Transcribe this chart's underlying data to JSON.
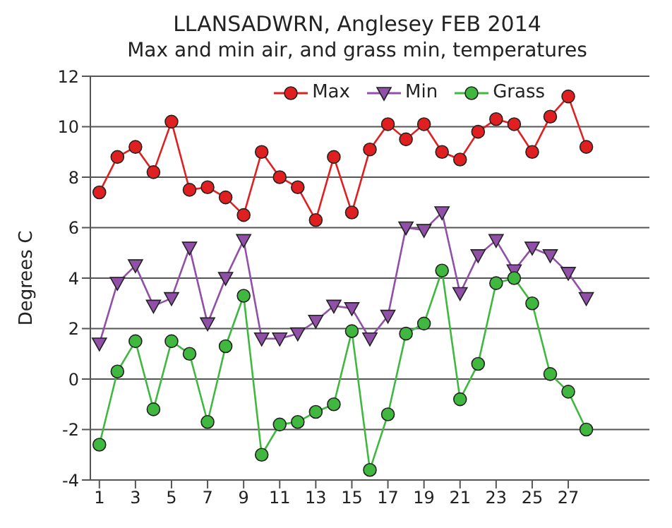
{
  "chart_data": {
    "type": "line",
    "title": "LLANSADWRN, Anglesey FEB 2014",
    "subtitle": "Max and min air, and grass min, temperatures",
    "ylabel": "Degrees C",
    "x": [
      1,
      2,
      3,
      4,
      5,
      6,
      7,
      8,
      9,
      10,
      11,
      12,
      13,
      14,
      15,
      16,
      17,
      18,
      19,
      20,
      21,
      22,
      23,
      24,
      25,
      26,
      27,
      28
    ],
    "xlim": [
      0.5,
      31.5
    ],
    "xticks": [
      1,
      3,
      5,
      7,
      9,
      11,
      13,
      15,
      17,
      19,
      21,
      23,
      25,
      27
    ],
    "ylim": [
      -4,
      12
    ],
    "yticks": [
      -4,
      -2,
      0,
      2,
      4,
      6,
      8,
      10,
      12
    ],
    "grid": "y",
    "legend": "top right",
    "line_style": "solid",
    "series": [
      {
        "name": "Max",
        "color": "#e02020",
        "marker": "circle",
        "values": [
          7.4,
          8.8,
          9.2,
          8.2,
          10.2,
          7.5,
          7.6,
          7.2,
          6.5,
          9.0,
          8.0,
          7.6,
          6.3,
          8.8,
          6.6,
          9.1,
          10.1,
          9.5,
          10.1,
          9.0,
          8.7,
          9.8,
          10.3,
          10.1,
          9.0,
          10.4,
          11.2,
          9.2
        ]
      },
      {
        "name": "Min",
        "color": "#9050a8",
        "marker": "triangle",
        "values": [
          1.4,
          3.8,
          4.5,
          2.9,
          3.2,
          5.2,
          2.2,
          4.0,
          5.5,
          1.6,
          1.6,
          1.8,
          2.3,
          2.9,
          2.8,
          1.6,
          2.5,
          6.0,
          5.9,
          6.6,
          3.4,
          4.9,
          5.5,
          4.3,
          5.2,
          4.9,
          4.2,
          3.2
        ]
      },
      {
        "name": "Grass",
        "color": "#40b840",
        "marker": "circle",
        "values": [
          -2.6,
          0.3,
          1.5,
          -1.2,
          1.5,
          1.0,
          -1.7,
          1.3,
          3.3,
          -3.0,
          -1.8,
          -1.7,
          -1.3,
          -1.0,
          1.9,
          -3.6,
          -1.4,
          1.8,
          2.2,
          4.3,
          -0.8,
          0.6,
          3.8,
          4.0,
          3.0,
          0.2,
          -0.5,
          -2.0
        ]
      }
    ]
  }
}
